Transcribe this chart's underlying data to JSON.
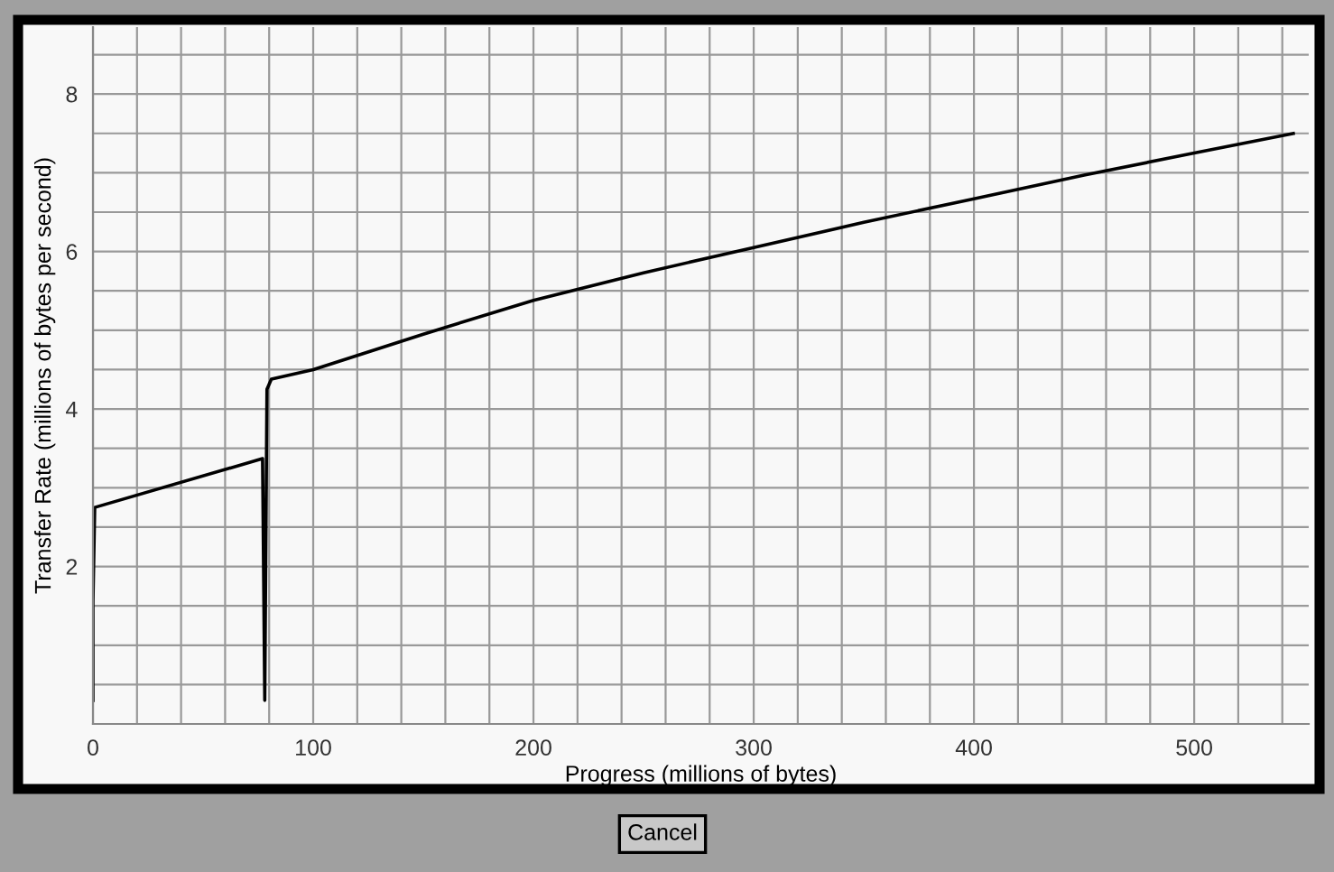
{
  "chart_data": {
    "type": "line",
    "xlabel": "Progress (millions of bytes)",
    "ylabel": "Transfer Rate (millions of bytes per second)",
    "x": [
      0,
      0,
      0.8,
      77,
      77.5,
      78,
      78.5,
      79,
      81,
      100,
      150,
      200,
      250,
      300,
      350,
      400,
      450,
      500,
      545
    ],
    "series": [
      {
        "color": "#000000",
        "values": [
          0.3,
          1.55,
          2.75,
          3.37,
          1.85,
          0.3,
          2.25,
          4.25,
          4.38,
          4.5,
          4.95,
          5.38,
          5.73,
          6.05,
          6.37,
          6.67,
          6.97,
          7.25,
          7.5
        ]
      }
    ],
    "xlim": [
      0,
      552
    ],
    "ylim": [
      0,
      8.85
    ],
    "xticks": [
      0,
      {
        "value": 20,
        "label": null
      },
      {
        "value": 40,
        "label": null
      },
      {
        "value": 60,
        "label": null
      },
      {
        "value": 80,
        "label": null
      },
      100,
      {
        "value": 120,
        "label": null
      },
      {
        "value": 140,
        "label": null
      },
      {
        "value": 160,
        "label": null
      },
      {
        "value": 180,
        "label": null
      },
      200,
      {
        "value": 220,
        "label": null
      },
      {
        "value": 240,
        "label": null
      },
      {
        "value": 260,
        "label": null
      },
      {
        "value": 280,
        "label": null
      },
      300,
      {
        "value": 320,
        "label": null
      },
      {
        "value": 340,
        "label": null
      },
      {
        "value": 360,
        "label": null
      },
      {
        "value": 380,
        "label": null
      },
      400,
      {
        "value": 420,
        "label": null
      },
      {
        "value": 440,
        "label": null
      },
      {
        "value": 460,
        "label": null
      },
      {
        "value": 480,
        "label": null
      },
      500,
      {
        "value": 520,
        "label": null
      },
      {
        "value": 540,
        "label": null
      }
    ],
    "yticks": [
      {
        "value": 0.5,
        "label": null
      },
      {
        "value": 1,
        "label": null
      },
      {
        "value": 1.5,
        "label": null
      },
      2,
      {
        "value": 2.5,
        "label": null
      },
      {
        "value": 3,
        "label": null
      },
      {
        "value": 3.5,
        "label": null
      },
      4,
      {
        "value": 4.5,
        "label": null
      },
      {
        "value": 5,
        "label": null
      },
      {
        "value": 5.5,
        "label": null
      },
      6,
      {
        "value": 6.5,
        "label": null
      },
      {
        "value": 7,
        "label": null
      },
      {
        "value": 7.5,
        "label": null
      },
      8,
      {
        "value": 8.5,
        "label": null
      }
    ],
    "grid": true,
    "marker": "none",
    "line_style": "solid",
    "annotations": [
      "Cancel"
    ]
  }
}
